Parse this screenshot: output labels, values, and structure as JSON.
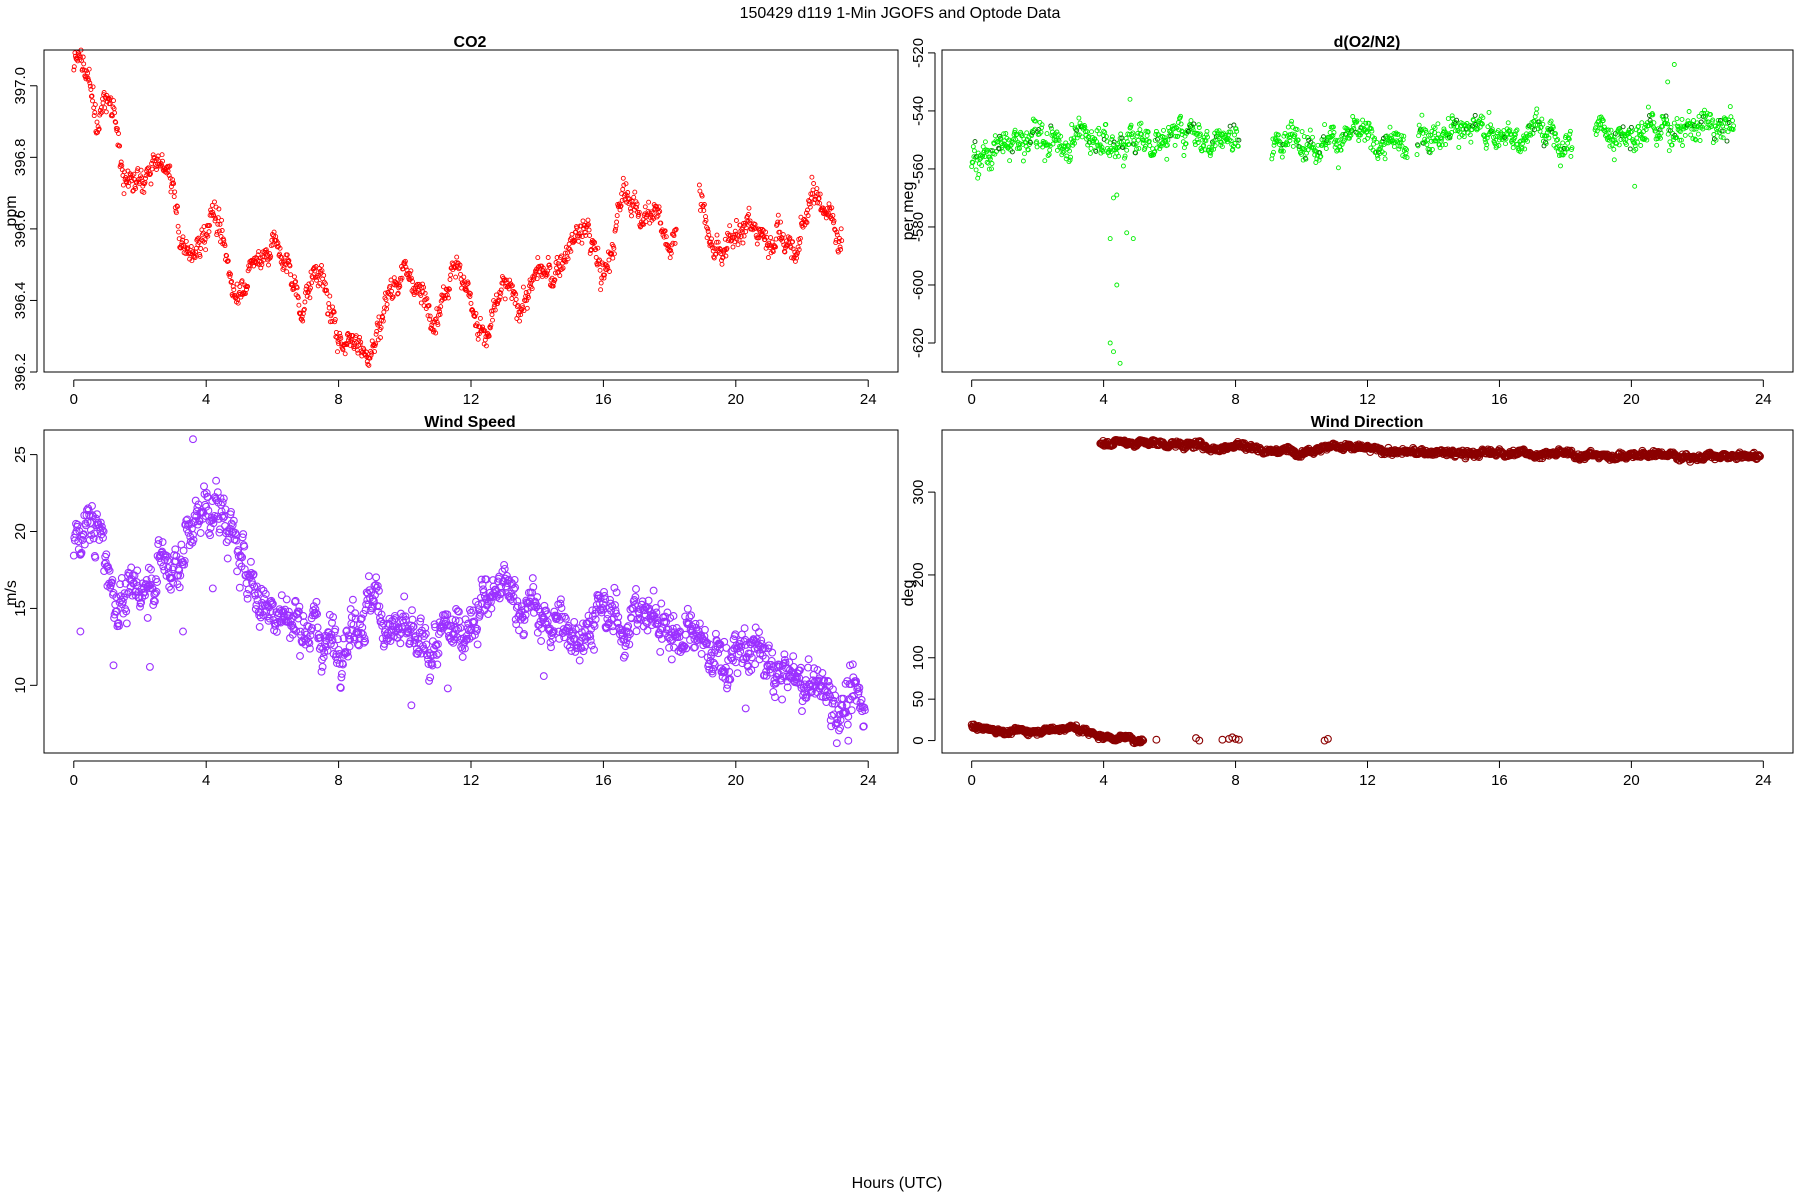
{
  "figure": {
    "title": "150429   d119   1-Min  JGOFS and Optode Data",
    "xlabel": "Hours (UTC)"
  },
  "chart_data": [
    {
      "id": "co2",
      "type": "scatter",
      "title": "CO2",
      "ylabel": "ppm",
      "xlim": [
        -0.9,
        24.9
      ],
      "ylim": [
        396.2,
        397.1
      ],
      "xticks": [
        0,
        4,
        8,
        12,
        16,
        20,
        24
      ],
      "yticks": [
        396.2,
        396.4,
        396.6,
        396.8,
        397.0
      ],
      "color": "#ff0000",
      "marker_size": "small",
      "x_range": [
        0,
        23.2
      ],
      "gaps": [
        [
          18.2,
          18.9
        ]
      ],
      "trend": [
        [
          0,
          397.06
        ],
        [
          0.2,
          397.06
        ],
        [
          0.5,
          397.02
        ],
        [
          0.7,
          396.9
        ],
        [
          1.0,
          396.95
        ],
        [
          1.3,
          396.9
        ],
        [
          1.5,
          396.72
        ],
        [
          2.0,
          396.73
        ],
        [
          2.5,
          396.78
        ],
        [
          3.0,
          396.74
        ],
        [
          3.2,
          396.56
        ],
        [
          3.6,
          396.52
        ],
        [
          4.2,
          396.66
        ],
        [
          4.6,
          396.5
        ],
        [
          4.9,
          396.43
        ],
        [
          5.5,
          396.5
        ],
        [
          6.0,
          396.57
        ],
        [
          6.5,
          396.48
        ],
        [
          6.9,
          396.38
        ],
        [
          7.4,
          396.5
        ],
        [
          7.9,
          396.3
        ],
        [
          8.4,
          396.3
        ],
        [
          9.0,
          396.25
        ],
        [
          9.5,
          396.42
        ],
        [
          10.0,
          396.5
        ],
        [
          10.5,
          396.4
        ],
        [
          11.0,
          396.38
        ],
        [
          11.5,
          396.52
        ],
        [
          12.0,
          396.4
        ],
        [
          12.4,
          396.28
        ],
        [
          13.0,
          396.44
        ],
        [
          13.5,
          396.38
        ],
        [
          14.0,
          396.48
        ],
        [
          14.5,
          396.46
        ],
        [
          15.0,
          396.56
        ],
        [
          15.5,
          396.6
        ],
        [
          16.0,
          396.46
        ],
        [
          16.3,
          396.56
        ],
        [
          16.6,
          396.7
        ],
        [
          17.0,
          396.66
        ],
        [
          17.5,
          396.64
        ],
        [
          18.0,
          396.56
        ],
        [
          18.2,
          396.62
        ],
        [
          18.9,
          396.72
        ],
        [
          19.2,
          396.56
        ],
        [
          19.6,
          396.5
        ],
        [
          20.0,
          396.62
        ],
        [
          20.5,
          396.6
        ],
        [
          21.0,
          396.57
        ],
        [
          21.3,
          396.6
        ],
        [
          21.8,
          396.52
        ],
        [
          22.3,
          396.7
        ],
        [
          22.7,
          396.66
        ],
        [
          23.2,
          396.58
        ]
      ],
      "noise": 0.03
    },
    {
      "id": "o2n2",
      "type": "scatter",
      "title": "d(O2/N2)",
      "ylabel": "per meg",
      "xlim": [
        -0.9,
        24.9
      ],
      "ylim": [
        -630,
        -519
      ],
      "xticks": [
        0,
        4,
        8,
        12,
        16,
        20,
        24
      ],
      "yticks": [
        -620,
        -600,
        -580,
        -560,
        -540,
        -520
      ],
      "color": "#00ee00",
      "color_dark": "#006400",
      "marker_size": "small",
      "x_range": [
        0,
        23.1
      ],
      "gaps": [
        [
          8.1,
          9.1
        ],
        [
          13.2,
          13.5
        ],
        [
          18.2,
          18.9
        ]
      ],
      "trend": [
        [
          0,
          -557
        ],
        [
          1.0,
          -553
        ],
        [
          2.0,
          -547
        ],
        [
          3.0,
          -549
        ],
        [
          4.0,
          -550
        ],
        [
          5.0,
          -551
        ],
        [
          6.0,
          -548
        ],
        [
          7.0,
          -548
        ],
        [
          8.1,
          -548
        ],
        [
          9.1,
          -550
        ],
        [
          10.0,
          -550
        ],
        [
          11.0,
          -549
        ],
        [
          12.0,
          -550
        ],
        [
          13.2,
          -551
        ],
        [
          13.5,
          -548
        ],
        [
          15.0,
          -547
        ],
        [
          16.5,
          -548
        ],
        [
          18.2,
          -549
        ],
        [
          18.9,
          -547
        ],
        [
          20.0,
          -548
        ],
        [
          21.0,
          -546
        ],
        [
          22.0,
          -545
        ],
        [
          23.1,
          -545
        ]
      ],
      "noise": 4,
      "outliers": [
        [
          4.2,
          -584
        ],
        [
          4.3,
          -570
        ],
        [
          4.4,
          -569
        ],
        [
          4.2,
          -620
        ],
        [
          4.3,
          -623
        ],
        [
          4.5,
          -627
        ],
        [
          4.4,
          -600
        ],
        [
          4.7,
          -582
        ],
        [
          4.9,
          -584
        ],
        [
          4.8,
          -536
        ],
        [
          21.3,
          -524
        ],
        [
          21.1,
          -530
        ],
        [
          20.1,
          -566
        ],
        [
          4.0,
          -547
        ],
        [
          4.6,
          -559
        ]
      ]
    },
    {
      "id": "wspd",
      "type": "scatter",
      "title": "Wind Speed",
      "ylabel": "m/s",
      "xlim": [
        -0.9,
        24.9
      ],
      "ylim": [
        5.6,
        26.6
      ],
      "xticks": [
        0,
        4,
        8,
        12,
        16,
        20,
        24
      ],
      "yticks": [
        10,
        15,
        20,
        25
      ],
      "color": "#9b30ff",
      "marker_size": "large",
      "x_range": [
        0,
        23.9
      ],
      "gaps": [],
      "trend": [
        [
          0,
          19.5
        ],
        [
          0.5,
          20.5
        ],
        [
          0.8,
          19.5
        ],
        [
          1.3,
          15.5
        ],
        [
          2.0,
          15.8
        ],
        [
          2.5,
          18.0
        ],
        [
          3.0,
          17.5
        ],
        [
          3.5,
          20.0
        ],
        [
          4.0,
          22.0
        ],
        [
          4.5,
          21.0
        ],
        [
          5.0,
          18.5
        ],
        [
          5.5,
          16.0
        ],
        [
          6.0,
          15.0
        ],
        [
          6.5,
          14.0
        ],
        [
          7.0,
          14.5
        ],
        [
          7.5,
          13.0
        ],
        [
          8.0,
          13.0
        ],
        [
          8.5,
          14.5
        ],
        [
          9.0,
          15.5
        ],
        [
          9.5,
          14.0
        ],
        [
          10.0,
          13.0
        ],
        [
          10.5,
          12.0
        ],
        [
          11.0,
          12.5
        ],
        [
          11.5,
          13.5
        ],
        [
          12.0,
          14.5
        ],
        [
          12.5,
          15.5
        ],
        [
          13.0,
          16.0
        ],
        [
          13.5,
          15.5
        ],
        [
          14.0,
          14.5
        ],
        [
          14.5,
          13.8
        ],
        [
          15.0,
          13.5
        ],
        [
          15.5,
          14.0
        ],
        [
          16.0,
          14.5
        ],
        [
          16.5,
          14.0
        ],
        [
          17.0,
          14.5
        ],
        [
          17.5,
          14.5
        ],
        [
          18.0,
          14.0
        ],
        [
          18.5,
          13.0
        ],
        [
          19.0,
          12.5
        ],
        [
          19.5,
          12.0
        ],
        [
          20.0,
          11.5
        ],
        [
          20.5,
          12.5
        ],
        [
          21.0,
          11.0
        ],
        [
          21.5,
          10.5
        ],
        [
          22.0,
          10.0
        ],
        [
          22.5,
          10.0
        ],
        [
          23.0,
          9.0
        ],
        [
          23.5,
          8.5
        ],
        [
          23.9,
          9.0
        ]
      ],
      "noise": 1.2,
      "outliers": [
        [
          0.2,
          13.5
        ],
        [
          1.2,
          11.3
        ],
        [
          2.3,
          11.2
        ],
        [
          3.3,
          13.5
        ],
        [
          3.6,
          26.0
        ],
        [
          4.2,
          16.3
        ],
        [
          10.2,
          8.7
        ],
        [
          11.3,
          9.8
        ],
        [
          14.2,
          10.6
        ],
        [
          23.4,
          6.4
        ],
        [
          20.3,
          8.5
        ]
      ]
    },
    {
      "id": "wdir",
      "type": "scatter",
      "title": "Wind Direction",
      "ylabel": "deg",
      "xlim": [
        -0.9,
        24.9
      ],
      "ylim": [
        -15,
        375
      ],
      "xticks": [
        0,
        4,
        8,
        12,
        16,
        20,
        24
      ],
      "yticks": [
        0,
        50,
        100,
        200,
        300
      ],
      "color": "#8b0000",
      "marker_size": "large",
      "high_band": {
        "x_range": [
          3.9,
          23.9
        ],
        "trend": [
          [
            3.9,
            360
          ],
          [
            5.0,
            360
          ],
          [
            6.0,
            358
          ],
          [
            7.0,
            356
          ],
          [
            7.5,
            352
          ],
          [
            8.0,
            358
          ],
          [
            9.0,
            350
          ],
          [
            10.0,
            350
          ],
          [
            11.0,
            356
          ],
          [
            12.0,
            352
          ],
          [
            13.0,
            348
          ],
          [
            14.0,
            348
          ],
          [
            15.0,
            346
          ],
          [
            16.0,
            348
          ],
          [
            17.0,
            346
          ],
          [
            18.0,
            346
          ],
          [
            19.0,
            344
          ],
          [
            20.0,
            344
          ],
          [
            21.0,
            346
          ],
          [
            22.0,
            342
          ],
          [
            23.0,
            342
          ],
          [
            23.9,
            344
          ]
        ],
        "noise": 3
      },
      "low_band": {
        "x_range": [
          0,
          5.2
        ],
        "trend": [
          [
            0,
            17
          ],
          [
            0.5,
            14
          ],
          [
            1.0,
            11
          ],
          [
            2.0,
            12
          ],
          [
            3.0,
            16
          ],
          [
            3.5,
            10
          ],
          [
            4.0,
            5
          ],
          [
            5.2,
            1
          ]
        ],
        "noise": 2.5
      },
      "outliers": [
        [
          5.6,
          1
        ],
        [
          6.8,
          3
        ],
        [
          6.9,
          0
        ],
        [
          7.6,
          1
        ],
        [
          7.8,
          2
        ],
        [
          7.9,
          4
        ],
        [
          8.0,
          2
        ],
        [
          8.1,
          1
        ],
        [
          10.7,
          0
        ],
        [
          10.8,
          2
        ]
      ]
    }
  ]
}
